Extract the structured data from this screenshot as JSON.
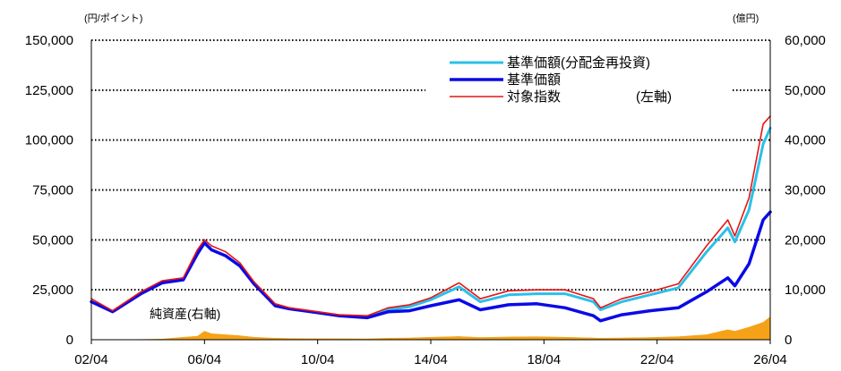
{
  "chart_data": {
    "type": "line",
    "x_tick_labels": [
      "02/04",
      "06/04",
      "10/04",
      "14/04",
      "18/04",
      "22/04",
      "26/04"
    ],
    "y_left": {
      "unit": "(円/ポイント)",
      "range": [
        0,
        150000
      ],
      "tick_labels": [
        "0",
        "25,000",
        "50,000",
        "75,000",
        "100,000",
        "125,000",
        "150,000"
      ]
    },
    "y_right": {
      "unit": "(億円)",
      "range": [
        0,
        60000
      ],
      "tick_labels": [
        "0",
        "10,000",
        "20,000",
        "30,000",
        "40,000",
        "50,000",
        "60,000"
      ]
    },
    "grid": "horizontal dotted",
    "legend_position": "top-right",
    "legend_note": "(左軸)",
    "annotation": "純資産(右軸)",
    "x": [
      2002.25,
      2003.0,
      2004.0,
      2004.75,
      2005.5,
      2006.0,
      2006.25,
      2006.5,
      2007.0,
      2007.5,
      2008.0,
      2008.75,
      2009.25,
      2010.0,
      2011.0,
      2012.0,
      2012.75,
      2013.5,
      2014.25,
      2015.25,
      2016.0,
      2017.0,
      2018.0,
      2019.0,
      2020.0,
      2020.25,
      2021.0,
      2022.0,
      2023.0,
      2024.0,
      2024.75,
      2025.0,
      2025.5,
      2026.0,
      2026.25
    ],
    "series": [
      {
        "name": "基準価額(分配金再投資)",
        "axis": "left",
        "color": "#2bc0e8",
        "width": 3,
        "values": [
          19000,
          14000,
          23000,
          28500,
          30000,
          43000,
          48500,
          45000,
          42000,
          37000,
          28000,
          17000,
          15500,
          14000,
          12000,
          11500,
          15000,
          16500,
          20000,
          26500,
          19000,
          22500,
          23000,
          23000,
          19000,
          15000,
          19000,
          22500,
          26000,
          44000,
          56000,
          49000,
          65000,
          98000,
          106000
        ]
      },
      {
        "name": "基準価額",
        "axis": "left",
        "color": "#0a0ae6",
        "width": 3.5,
        "values": [
          19000,
          14000,
          23000,
          28500,
          30000,
          43000,
          48500,
          45000,
          42000,
          37000,
          28000,
          17000,
          15500,
          14000,
          12000,
          11000,
          14000,
          14500,
          17000,
          20000,
          15000,
          17500,
          18000,
          16000,
          12000,
          9500,
          12500,
          14500,
          16000,
          24000,
          31000,
          27000,
          38000,
          60000,
          64000
        ]
      },
      {
        "name": "対象指数",
        "axis": "left",
        "color": "#e81414",
        "width": 1.6,
        "values": [
          20500,
          14500,
          24000,
          29500,
          31000,
          45000,
          50000,
          47000,
          44000,
          38500,
          29000,
          18000,
          16000,
          14500,
          12500,
          12000,
          16000,
          17500,
          21000,
          28500,
          20500,
          24500,
          25000,
          25000,
          20500,
          16000,
          20500,
          24000,
          28000,
          47000,
          60000,
          52000,
          71000,
          108000,
          112000
        ]
      },
      {
        "name": "純資産",
        "axis": "right",
        "color": "#f5a219",
        "type": "area",
        "values": [
          0,
          20,
          60,
          120,
          500,
          700,
          1700,
          1200,
          1000,
          800,
          500,
          300,
          250,
          220,
          200,
          180,
          300,
          350,
          500,
          650,
          450,
          550,
          600,
          500,
          350,
          300,
          350,
          450,
          600,
          1000,
          2000,
          1700,
          2500,
          3500,
          4600
        ]
      }
    ]
  }
}
